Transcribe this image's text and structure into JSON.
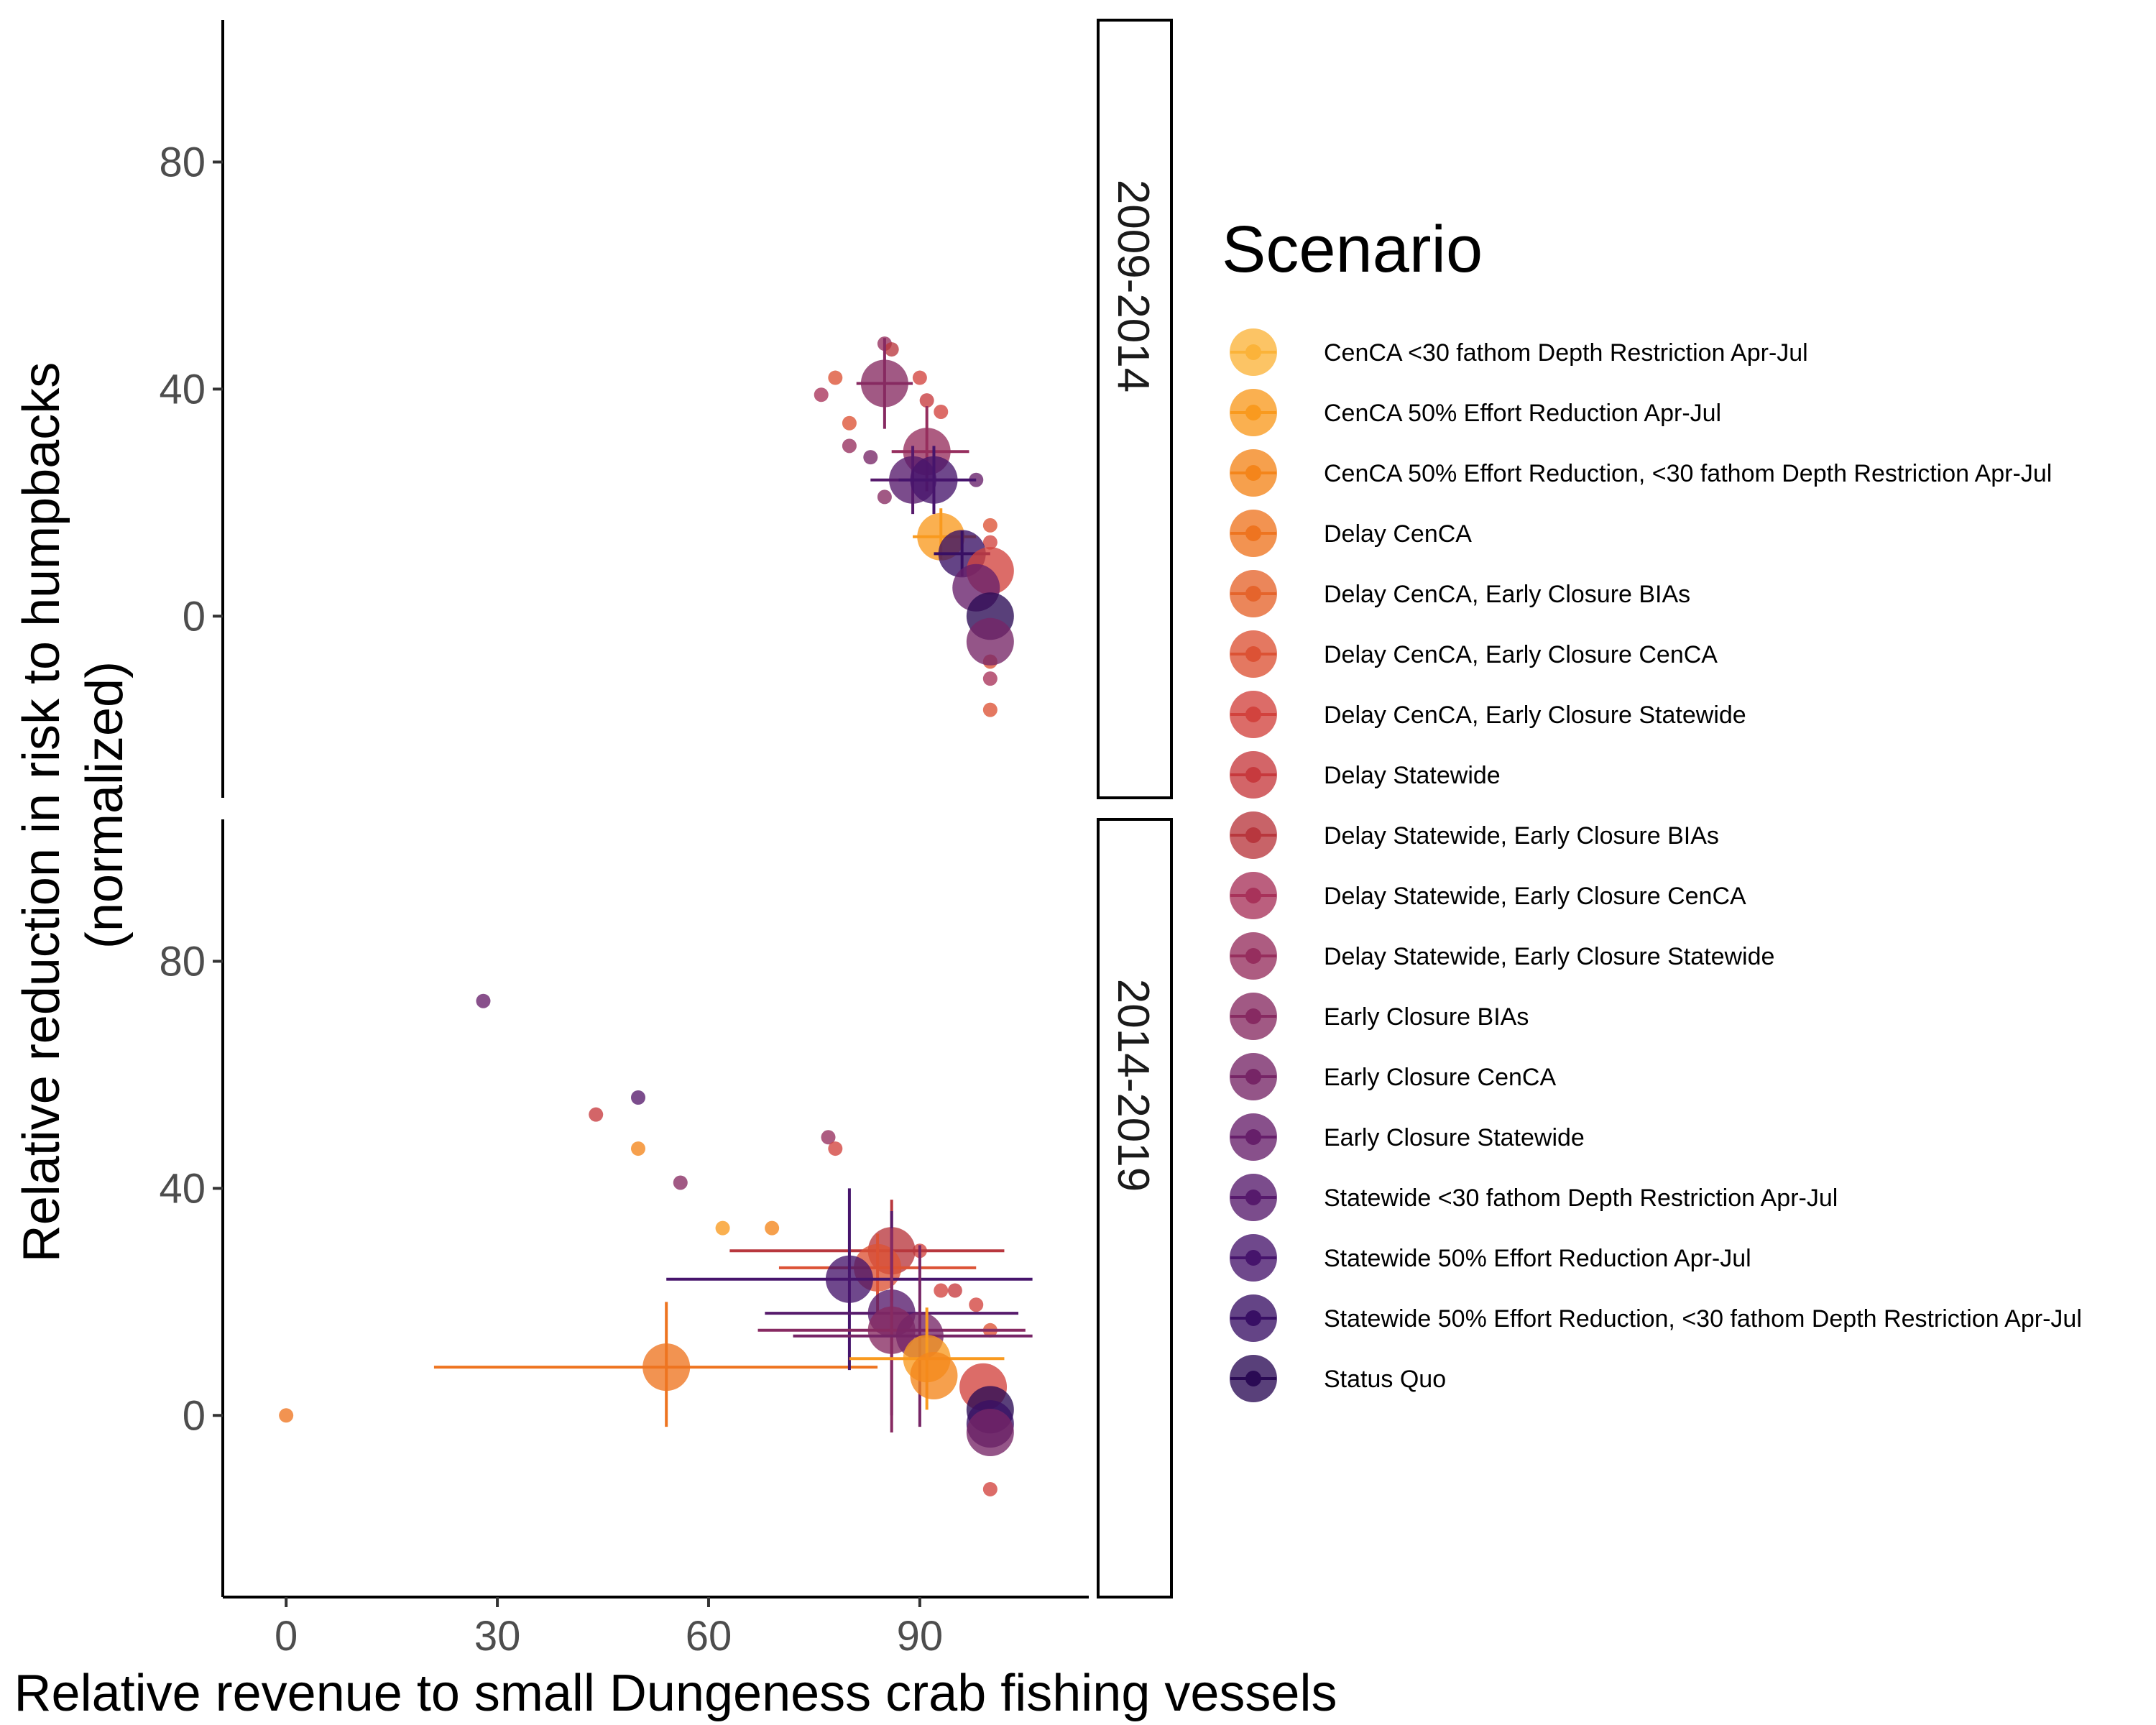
{
  "chart_data": {
    "type": "scatter",
    "xlabel": "Relative revenue to small Dungeness crab fishing vessels",
    "ylabel_lines": [
      "Relative reduction in risk to humpbacks",
      "(normalized)"
    ],
    "xlim": [
      -9,
      114
    ],
    "ylim": [
      -32,
      105
    ],
    "x_ticks": [
      0,
      30,
      60,
      90
    ],
    "y_ticks": [
      0,
      40,
      80
    ],
    "grid": false,
    "legend": {
      "title": "Scenario",
      "position": "right",
      "items": [
        {
          "label": "CenCA <30 fathom Depth Restriction Apr-Jul",
          "color": "#fbb33a"
        },
        {
          "label": "CenCA 50% Effort Reduction Apr-Jul",
          "color": "#f99a1f"
        },
        {
          "label": "CenCA 50% Effort Reduction, <30 fathom Depth Restriction Apr-Jul",
          "color": "#f4851b"
        },
        {
          "label": "Delay CenCA",
          "color": "#ee7420"
        },
        {
          "label": "Delay CenCA, Early Closure BIAs",
          "color": "#e5642c"
        },
        {
          "label": "Delay CenCA, Early Closure CenCA",
          "color": "#dc5235"
        },
        {
          "label": "Delay CenCA, Early Closure Statewide",
          "color": "#d2433e"
        },
        {
          "label": "Delay Statewide",
          "color": "#c73a3e"
        },
        {
          "label": "Delay Statewide, Early Closure BIAs",
          "color": "#b8373e"
        },
        {
          "label": "Delay Statewide, Early Closure CenCA",
          "color": "#a8325a"
        },
        {
          "label": "Delay Statewide, Early Closure Statewide",
          "color": "#962e5e"
        },
        {
          "label": "Early Closure BIAs",
          "color": "#872a62"
        },
        {
          "label": "Early Closure CenCA",
          "color": "#762566"
        },
        {
          "label": "Early Closure Statewide",
          "color": "#661f6a"
        },
        {
          "label": "Statewide <30 fathom Depth Restriction Apr-Jul",
          "color": "#561a6c"
        },
        {
          "label": "Statewide 50% Effort Reduction Apr-Jul",
          "color": "#46146c"
        },
        {
          "label": "Statewide 50% Effort Reduction, <30 fathom Depth Restriction Apr-Jul",
          "color": "#380f64"
        },
        {
          "label": "Status Quo",
          "color": "#2a0a54"
        }
      ]
    },
    "panels": [
      {
        "strip_label": "2009-2014",
        "points": [
          {
            "x": 85,
            "y": 48,
            "s": 0,
            "c": 10
          },
          {
            "x": 86,
            "y": 47,
            "s": 0,
            "c": 8
          },
          {
            "x": 78,
            "y": 42,
            "s": 0,
            "c": 5
          },
          {
            "x": 76,
            "y": 39,
            "s": 0,
            "c": 9
          },
          {
            "x": 80,
            "y": 34,
            "s": 0,
            "c": 5
          },
          {
            "x": 80,
            "y": 30,
            "s": 0,
            "c": 10
          },
          {
            "x": 83,
            "y": 28,
            "s": 0,
            "c": 12
          },
          {
            "x": 85,
            "y": 21,
            "s": 0,
            "c": 11
          },
          {
            "x": 90,
            "y": 42,
            "s": 0,
            "c": 6
          },
          {
            "x": 91,
            "y": 38,
            "s": 0,
            "c": 7
          },
          {
            "x": 93,
            "y": 36,
            "s": 0,
            "c": 6
          },
          {
            "x": 98,
            "y": 24,
            "s": 0,
            "c": 13
          },
          {
            "x": 100,
            "y": 16,
            "s": 0,
            "c": 5
          },
          {
            "x": 100,
            "y": 13,
            "s": 0,
            "c": 6
          },
          {
            "x": 100,
            "y": -8,
            "s": 0,
            "c": 5
          },
          {
            "x": 100,
            "y": -11,
            "s": 0,
            "c": 9
          },
          {
            "x": 100,
            "y": -16.5,
            "s": 0,
            "c": 5
          },
          {
            "x": 85,
            "y": 41,
            "s": 2,
            "c": 11,
            "xe": [
              81,
              89
            ],
            "ye": [
              33,
              49
            ]
          },
          {
            "x": 91,
            "y": 29,
            "s": 2,
            "c": 10,
            "xe": [
              86,
              97
            ],
            "ye": [
              22,
              37
            ]
          },
          {
            "x": 89,
            "y": 24,
            "s": 2,
            "c": 14,
            "xe": [
              83,
              95
            ],
            "ye": [
              18,
              30
            ]
          },
          {
            "x": 92,
            "y": 24,
            "s": 2,
            "c": 15,
            "xe": [
              87,
              98
            ],
            "ye": [
              18,
              30
            ]
          },
          {
            "x": 93,
            "y": 14,
            "s": 2,
            "c": 1,
            "xe": [
              89,
              98
            ],
            "ye": [
              10,
              19
            ]
          },
          {
            "x": 96,
            "y": 11,
            "s": 2,
            "c": 16,
            "xe": [
              92,
              100
            ],
            "ye": [
              7,
              15
            ]
          },
          {
            "x": 100,
            "y": 8,
            "s": 2,
            "c": 6
          },
          {
            "x": 98,
            "y": 5,
            "s": 2,
            "c": 13
          },
          {
            "x": 100,
            "y": 0,
            "s": 2,
            "c": 17
          },
          {
            "x": 100,
            "y": -4.5,
            "s": 2,
            "c": 12
          }
        ]
      },
      {
        "strip_label": "2014-2019",
        "points": [
          {
            "x": 28,
            "y": 73,
            "s": 0,
            "c": 13
          },
          {
            "x": 50,
            "y": 56,
            "s": 0,
            "c": 14
          },
          {
            "x": 44,
            "y": 53,
            "s": 0,
            "c": 7
          },
          {
            "x": 50,
            "y": 47,
            "s": 0,
            "c": 2
          },
          {
            "x": 56,
            "y": 41,
            "s": 0,
            "c": 11
          },
          {
            "x": 62,
            "y": 33,
            "s": 0,
            "c": 1
          },
          {
            "x": 69,
            "y": 33,
            "s": 0,
            "c": 2
          },
          {
            "x": 77,
            "y": 49,
            "s": 0,
            "c": 10
          },
          {
            "x": 78,
            "y": 47,
            "s": 0,
            "c": 6
          },
          {
            "x": 90,
            "y": 29,
            "s": 0,
            "c": 6
          },
          {
            "x": 93,
            "y": 22,
            "s": 0,
            "c": 6
          },
          {
            "x": 95,
            "y": 22,
            "s": 0,
            "c": 7
          },
          {
            "x": 98,
            "y": 19.5,
            "s": 0,
            "c": 6
          },
          {
            "x": 100,
            "y": 15,
            "s": 0,
            "c": 5
          },
          {
            "x": 100,
            "y": -13,
            "s": 0,
            "c": 6
          },
          {
            "x": 0,
            "y": 0,
            "s": 0,
            "c": 3
          },
          {
            "x": 54,
            "y": 8.5,
            "s": 2,
            "c": 3,
            "xe": [
              21,
              84
            ],
            "ye": [
              -2,
              20
            ]
          },
          {
            "x": 86,
            "y": 29,
            "s": 2,
            "c": 8,
            "xe": [
              63,
              102
            ],
            "ye": [
              20,
              38
            ]
          },
          {
            "x": 84,
            "y": 26,
            "s": 2,
            "c": 5,
            "xe": [
              70,
              98
            ],
            "ye": [
              18,
              32
            ]
          },
          {
            "x": 80,
            "y": 24,
            "s": 2,
            "c": 15,
            "xe": [
              54,
              106
            ],
            "ye": [
              8,
              40
            ]
          },
          {
            "x": 86,
            "y": 18,
            "s": 2,
            "c": 14,
            "xe": [
              68,
              104
            ],
            "ye": [
              0,
              36
            ]
          },
          {
            "x": 86,
            "y": 15,
            "s": 2,
            "c": 11,
            "xe": [
              67,
              105
            ],
            "ye": [
              -3,
              33
            ]
          },
          {
            "x": 90,
            "y": 14,
            "s": 2,
            "c": 12,
            "xe": [
              72,
              106
            ],
            "ye": [
              -2,
              30
            ]
          },
          {
            "x": 91,
            "y": 10,
            "s": 2,
            "c": 1,
            "xe": [
              80,
              102
            ],
            "ye": [
              1,
              19
            ]
          },
          {
            "x": 92,
            "y": 7,
            "s": 2,
            "c": 2
          },
          {
            "x": 99,
            "y": 5,
            "s": 2,
            "c": 6
          },
          {
            "x": 100,
            "y": 1,
            "s": 2,
            "c": 17
          },
          {
            "x": 100,
            "y": -1.5,
            "s": 2,
            "c": 16
          },
          {
            "x": 100,
            "y": -3,
            "s": 2,
            "c": 12
          }
        ]
      }
    ]
  }
}
